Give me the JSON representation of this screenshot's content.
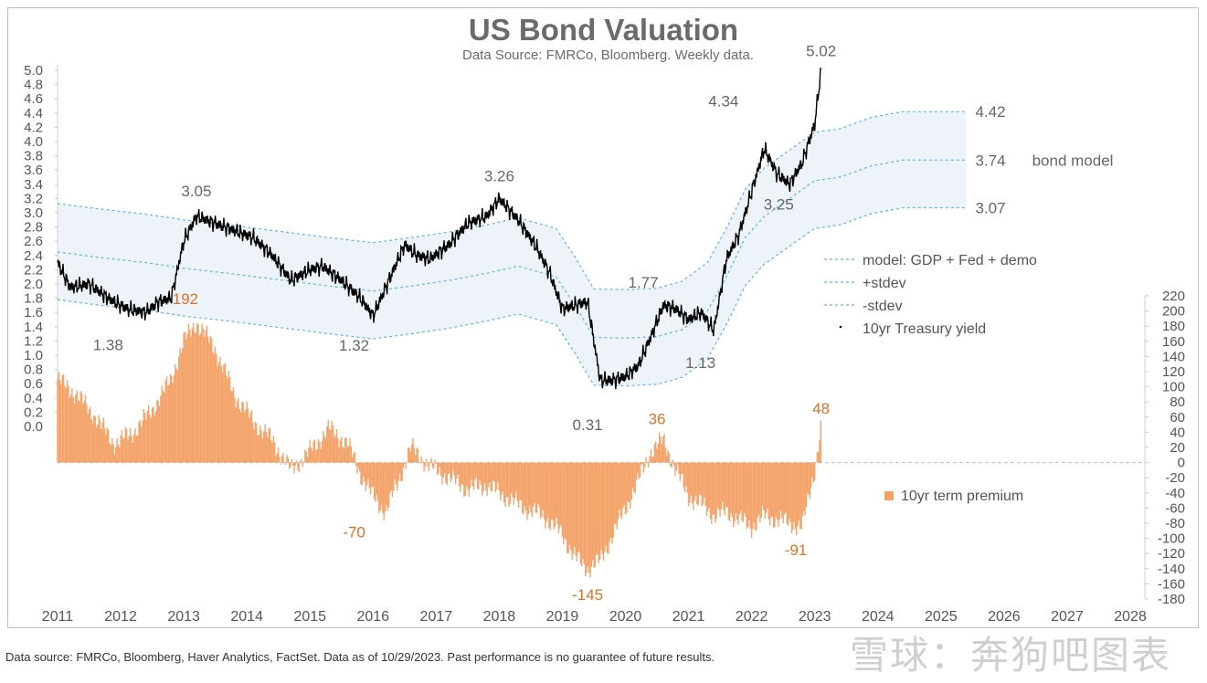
{
  "title": "US Bond Valuation",
  "subtitle": "Data Source: FMRCo, Bloomberg.  Weekly data.",
  "footer": "Data source: FMRCo, Bloomberg, Haver Analytics, FactSet. Data as of 10/29/2023. Past performance is no guarantee of future results.",
  "watermark": "雪球：奔狗吧图表",
  "colors": {
    "yield_line": "#000000",
    "band_dash": "#5bb7e6",
    "band_fill": "#eef3f9",
    "term_premium": "#f4a46a",
    "annotation_orange": "#e07020",
    "annotation_gray": "#666666",
    "axis_text": "#555555"
  },
  "chart_data": {
    "type": "line+bar",
    "x_ticks": [
      "2011",
      "2012",
      "2013",
      "2014",
      "2015",
      "2016",
      "2017",
      "2018",
      "2019",
      "2020",
      "2021",
      "2022",
      "2023",
      "2024",
      "2025",
      "2026",
      "2027",
      "2028"
    ],
    "xlim": [
      2011,
      2028
    ],
    "left_axis": {
      "ylim": [
        0.0,
        5.0
      ],
      "ticks": [
        "0.0",
        "0.2",
        "0.4",
        "0.6",
        "0.8",
        "1.0",
        "1.2",
        "1.4",
        "1.6",
        "1.8",
        "2.0",
        "2.2",
        "2.4",
        "2.6",
        "2.8",
        "3.0",
        "3.2",
        "3.4",
        "3.6",
        "3.8",
        "4.0",
        "4.2",
        "4.4",
        "4.6",
        "4.8",
        "5.0"
      ]
    },
    "right_axis": {
      "ylim": [
        -180,
        220
      ],
      "ticks": [
        "220",
        "200",
        "180",
        "160",
        "140",
        "120",
        "100",
        "80",
        "60",
        "40",
        "20",
        "0",
        "-20",
        "-40",
        "-60",
        "-80",
        "-100",
        "-120",
        "-140",
        "-160",
        "-180"
      ]
    },
    "legend": [
      {
        "label": "model: GDP + Fed + demo",
        "style": "dashed"
      },
      {
        "label": "+stdev",
        "style": "dashed"
      },
      {
        "label": "-stdev",
        "style": "dashed"
      },
      {
        "label": "10yr Treasury yield",
        "style": "dot"
      }
    ],
    "legend_bar": "10yr term premium",
    "series": [
      {
        "name": "model: GDP + Fed + demo",
        "x": [
          2011.0,
          2011.6,
          2012.4,
          2013.0,
          2013.8,
          2014.6,
          2015.4,
          2016.0,
          2016.6,
          2017.2,
          2017.8,
          2018.3,
          2018.9,
          2019.2,
          2019.5,
          2020.0,
          2020.5,
          2020.9,
          2021.3,
          2021.6,
          2021.9,
          2022.2,
          2022.6,
          2023.0,
          2023.4,
          2023.9,
          2024.4,
          2025.0,
          2025.4
        ],
        "values": [
          2.45,
          2.38,
          2.3,
          2.22,
          2.14,
          2.05,
          1.96,
          1.9,
          1.97,
          2.05,
          2.15,
          2.25,
          2.1,
          1.7,
          1.25,
          1.24,
          1.26,
          1.36,
          1.62,
          2.1,
          2.65,
          2.95,
          3.2,
          3.45,
          3.5,
          3.66,
          3.74,
          3.74,
          3.74
        ]
      },
      {
        "name": "+stdev",
        "x": [
          2011.0,
          2011.6,
          2012.4,
          2013.0,
          2013.8,
          2014.6,
          2015.4,
          2016.0,
          2016.6,
          2017.2,
          2017.8,
          2018.3,
          2018.9,
          2019.2,
          2019.5,
          2020.0,
          2020.5,
          2020.9,
          2021.3,
          2021.6,
          2021.9,
          2022.2,
          2022.6,
          2023.0,
          2023.4,
          2023.9,
          2024.4,
          2025.0,
          2025.4
        ],
        "values": [
          3.13,
          3.06,
          2.98,
          2.9,
          2.82,
          2.73,
          2.64,
          2.58,
          2.65,
          2.73,
          2.83,
          2.93,
          2.78,
          2.38,
          1.93,
          1.92,
          1.94,
          2.04,
          2.3,
          2.78,
          3.33,
          3.63,
          3.88,
          4.13,
          4.18,
          4.34,
          4.42,
          4.42,
          4.42
        ]
      },
      {
        "name": "-stdev",
        "x": [
          2011.0,
          2011.6,
          2012.4,
          2013.0,
          2013.8,
          2014.6,
          2015.4,
          2016.0,
          2016.6,
          2017.2,
          2017.8,
          2018.3,
          2018.9,
          2019.2,
          2019.5,
          2020.0,
          2020.5,
          2020.9,
          2021.3,
          2021.6,
          2021.9,
          2022.2,
          2022.6,
          2023.0,
          2023.4,
          2023.9,
          2024.4,
          2025.0,
          2025.4
        ],
        "values": [
          1.78,
          1.71,
          1.63,
          1.55,
          1.47,
          1.38,
          1.29,
          1.23,
          1.3,
          1.38,
          1.48,
          1.58,
          1.43,
          1.03,
          0.58,
          0.57,
          0.59,
          0.69,
          0.95,
          1.43,
          1.98,
          2.28,
          2.53,
          2.78,
          2.83,
          2.99,
          3.07,
          3.07,
          3.07
        ]
      },
      {
        "name": "10yr Treasury yield",
        "x": [
          2011.0,
          2011.2,
          2011.5,
          2011.8,
          2012.1,
          2012.4,
          2012.6,
          2012.8,
          2013.0,
          2013.2,
          2013.5,
          2013.8,
          2014.1,
          2014.4,
          2014.7,
          2015.0,
          2015.2,
          2015.5,
          2015.8,
          2016.0,
          2016.3,
          2016.5,
          2016.7,
          2016.9,
          2017.2,
          2017.5,
          2017.8,
          2018.0,
          2018.3,
          2018.6,
          2018.8,
          2019.0,
          2019.2,
          2019.4,
          2019.6,
          2019.8,
          2020.0,
          2020.2,
          2020.4,
          2020.6,
          2020.8,
          2021.0,
          2021.2,
          2021.4,
          2021.6,
          2021.8,
          2022.0,
          2022.2,
          2022.4,
          2022.6,
          2022.8,
          2023.0,
          2023.1
        ],
        "values": [
          2.3,
          1.95,
          2.0,
          1.8,
          1.65,
          1.6,
          1.75,
          1.8,
          2.6,
          2.95,
          2.85,
          2.75,
          2.65,
          2.4,
          2.05,
          2.2,
          2.25,
          2.05,
          1.8,
          1.55,
          2.15,
          2.55,
          2.4,
          2.35,
          2.55,
          2.85,
          2.95,
          3.2,
          2.9,
          2.5,
          2.15,
          1.65,
          1.7,
          1.75,
          0.65,
          0.65,
          0.7,
          0.85,
          1.25,
          1.7,
          1.65,
          1.5,
          1.6,
          1.35,
          2.35,
          2.7,
          3.3,
          3.9,
          3.55,
          3.4,
          3.7,
          4.25,
          5.0
        ]
      },
      {
        "name": "10yr term premium",
        "x": [
          2011.0,
          2011.3,
          2011.6,
          2011.9,
          2012.2,
          2012.5,
          2012.8,
          2013.0,
          2013.2,
          2013.5,
          2013.8,
          2014.1,
          2014.4,
          2014.7,
          2015.0,
          2015.3,
          2015.6,
          2015.8,
          2016.0,
          2016.2,
          2016.4,
          2016.6,
          2016.9,
          2017.2,
          2017.5,
          2017.8,
          2018.1,
          2018.4,
          2018.7,
          2019.0,
          2019.2,
          2019.4,
          2019.6,
          2019.8,
          2020.0,
          2020.2,
          2020.4,
          2020.6,
          2020.8,
          2021.0,
          2021.2,
          2021.4,
          2021.6,
          2021.8,
          2022.0,
          2022.2,
          2022.4,
          2022.6,
          2022.8,
          2023.0,
          2023.1
        ],
        "values": [
          110,
          90,
          60,
          25,
          40,
          70,
          110,
          160,
          185,
          150,
          90,
          55,
          30,
          -10,
          15,
          45,
          25,
          -15,
          -45,
          -65,
          -25,
          20,
          -5,
          -20,
          -35,
          -30,
          -45,
          -60,
          -70,
          -95,
          -125,
          -140,
          -130,
          -95,
          -60,
          -25,
          15,
          30,
          -10,
          -45,
          -55,
          -70,
          -65,
          -75,
          -85,
          -70,
          -75,
          -80,
          -85,
          -10,
          48
        ]
      }
    ],
    "annotations_gray": [
      {
        "text": "1.38",
        "x": 2011.8,
        "y": 1.38
      },
      {
        "text": "3.05",
        "x": 2013.2,
        "y": 3.05
      },
      {
        "text": "1.32",
        "x": 2015.7,
        "y": 1.32
      },
      {
        "text": "3.26",
        "x": 2018.0,
        "y": 3.26
      },
      {
        "text": "0.31",
        "x": 2019.4,
        "y": 0.31
      },
      {
        "text": "1.77",
        "x": 2020.5,
        "y": 1.77
      },
      {
        "text": "1.13",
        "x": 2020.9,
        "y": 1.13
      },
      {
        "text": "4.34",
        "x": 2021.8,
        "y": 4.34
      },
      {
        "text": "3.25",
        "x": 2022.4,
        "y": 3.25
      },
      {
        "text": "5.02",
        "x": 2023.1,
        "y": 5.02
      },
      {
        "text": "4.42",
        "x": 2025.4,
        "y": 4.42
      },
      {
        "text": "3.74",
        "x": 2025.4,
        "y": 3.74
      },
      {
        "text": "3.07",
        "x": 2025.4,
        "y": 3.07
      },
      {
        "text": "bond model",
        "x": 2026.3,
        "y": 3.74
      }
    ],
    "annotations_orange": [
      {
        "text": "192",
        "x": 2013.2,
        "y": 192
      },
      {
        "text": "-70",
        "x": 2015.7,
        "y": -70
      },
      {
        "text": "-145",
        "x": 2019.4,
        "y": -145
      },
      {
        "text": "36",
        "x": 2020.5,
        "y": 36
      },
      {
        "text": "-91",
        "x": 2022.7,
        "y": -91
      },
      {
        "text": "48",
        "x": 2023.1,
        "y": 48
      }
    ]
  }
}
